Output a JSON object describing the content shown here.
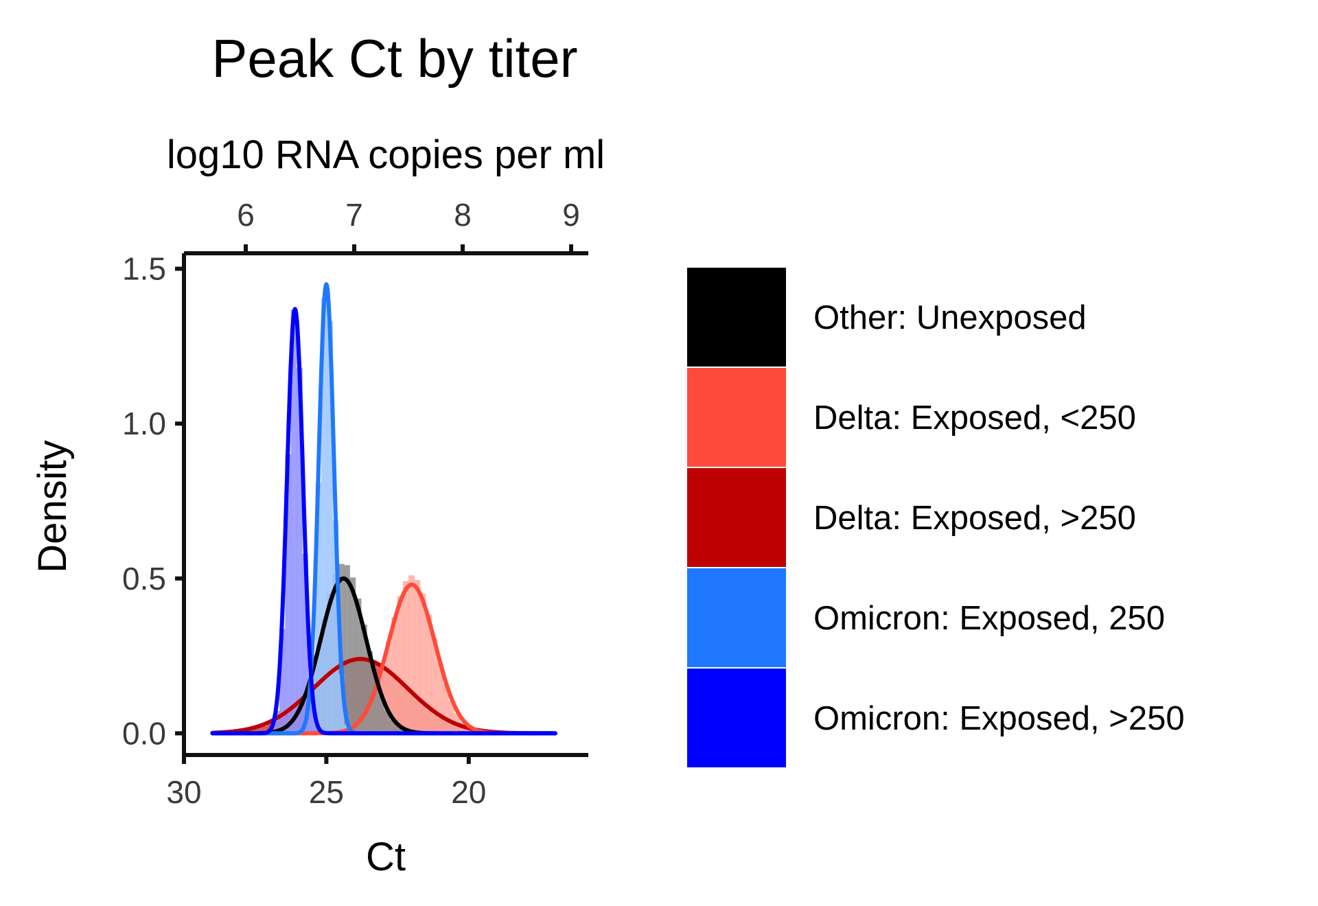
{
  "chart_data": {
    "type": "area",
    "title": "Peak Ct by titer",
    "xlabel": "Ct",
    "ylabel": "Density",
    "secondary_xlabel": "log10 RNA copies per ml",
    "xlim": [
      30,
      15.8
    ],
    "x_reversed": true,
    "ylim": [
      -0.07,
      1.55
    ],
    "x_ticks": [
      "30",
      "25",
      "20"
    ],
    "y_ticks": [
      "0.0",
      "0.5",
      "1.0",
      "1.5"
    ],
    "secondary_x_ticks": [
      "6",
      "7",
      "8",
      "9"
    ],
    "grid": false,
    "legend_position": "right",
    "series": [
      {
        "name": "Other: Unexposed",
        "color": "#000000",
        "fill": "#8c8c8c",
        "mean": 24.4,
        "sd": 0.8,
        "peak": 0.5,
        "hist_peak": 0.55
      },
      {
        "name": "Delta: Exposed, <250",
        "color": "#ff4b3a",
        "fill": "#ffaaa0",
        "mean": 22.0,
        "sd": 0.82,
        "peak": 0.48,
        "hist_peak": 0.51
      },
      {
        "name": "Delta: Exposed, >250",
        "color": "#be0000",
        "fill": "#d24040",
        "mean": 23.8,
        "sd": 1.65,
        "peak": 0.24,
        "hist_peak": 0.24
      },
      {
        "name": "Omicron: Exposed, 250",
        "color": "#1f78ff",
        "fill": "#9cc6ff",
        "mean": 25.0,
        "sd": 0.27,
        "peak": 1.45,
        "hist_peak": 1.48
      },
      {
        "name": "Omicron: Exposed, >250",
        "color": "#0000ff",
        "fill": "#8f8fff",
        "mean": 26.1,
        "sd": 0.28,
        "peak": 1.37,
        "hist_peak": 1.39
      }
    ]
  }
}
